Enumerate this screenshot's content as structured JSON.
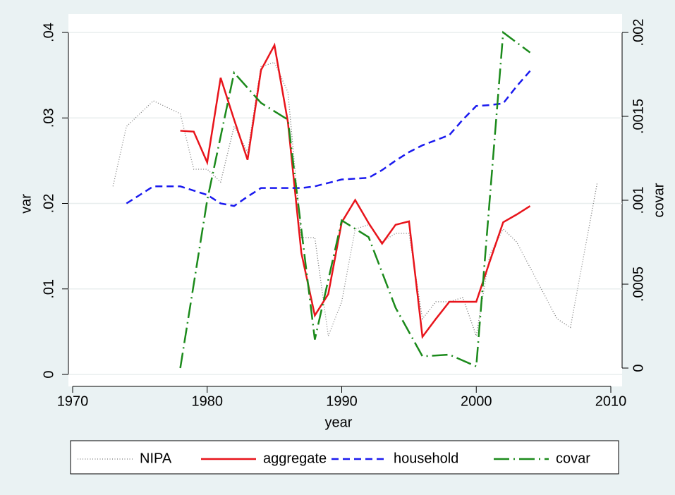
{
  "chart_data": {
    "type": "line",
    "x_label": "year",
    "y_label": "var",
    "y2_label": "covar",
    "xlim": [
      1970,
      2010
    ],
    "xticks": [
      1970,
      1980,
      1990,
      2000,
      2010
    ],
    "ylim": [
      0,
      0.04
    ],
    "yticks": [
      0,
      {
        "value": 0.01,
        "label": ".01"
      },
      {
        "value": 0.02,
        "label": ".02"
      },
      {
        "value": 0.03,
        "label": ".03"
      },
      {
        "value": 0.04,
        "label": ".04"
      }
    ],
    "y2lim": [
      0,
      0.002
    ],
    "y2ticks": [
      0,
      {
        "value": 0.0005,
        "label": ".0005"
      },
      {
        "value": 0.001,
        "label": ".001"
      },
      {
        "value": 0.0015,
        "label": ".0015"
      },
      {
        "value": 0.002,
        "label": ".002"
      }
    ],
    "grid": true,
    "legend": "bottom",
    "series": [
      {
        "name": "NIPA",
        "color": "#7a7a7a",
        "style": "dotted",
        "x": [
          1973,
          1974,
          1976,
          1978,
          1979,
          1980,
          1981,
          1982,
          1983,
          1984,
          1985,
          1986,
          1987,
          1988,
          1989,
          1990,
          1991,
          1992,
          1993,
          1994,
          1995,
          1996,
          1997,
          1998,
          1999,
          2000,
          2001,
          2002,
          2003,
          2004,
          2005,
          2006,
          2007,
          2008,
          2009
        ],
        "values": [
          0.022,
          0.029,
          0.032,
          0.0305,
          0.024,
          0.024,
          0.0225,
          0.029,
          0.026,
          0.036,
          0.0365,
          0.033,
          0.016,
          0.016,
          0.0045,
          0.0085,
          0.017,
          0.0175,
          0.0155,
          0.0165,
          0.0165,
          0.0065,
          0.0085,
          0.0085,
          0.009,
          0.0045,
          0.014,
          0.017,
          0.0155,
          0.0125,
          0.0095,
          0.0065,
          0.0055,
          0.014,
          0.0225
        ]
      },
      {
        "name": "aggregate",
        "color": "#e8141b",
        "style": "solid",
        "x": [
          1978,
          1979,
          1980,
          1981,
          1982,
          1983,
          1984,
          1985,
          1986,
          1987,
          1988,
          1989,
          1990,
          1991,
          1992,
          1993,
          1994,
          1995,
          1996,
          1997,
          1998,
          1999,
          2000,
          2001,
          2002,
          2003,
          2004
        ],
        "values": [
          0.0285,
          0.0284,
          0.0248,
          0.0347,
          0.0298,
          0.0251,
          0.0356,
          0.0385,
          0.0295,
          0.0142,
          0.0069,
          0.0094,
          0.0178,
          0.0204,
          0.0177,
          0.0153,
          0.0175,
          0.0179,
          0.0044,
          0.0065,
          0.0085,
          0.0085,
          0.0085,
          0.0132,
          0.0178,
          0.0187,
          0.0197
        ]
      },
      {
        "name": "household",
        "color": "#1a1aef",
        "style": "dashed",
        "x": [
          1974,
          1975,
          1976,
          1977,
          1978,
          1979,
          1980,
          1981,
          1982,
          1983,
          1984,
          1985,
          1986,
          1987,
          1988,
          1989,
          1990,
          1991,
          1992,
          1993,
          1994,
          1995,
          1996,
          1997,
          1998,
          1999,
          2000,
          2001,
          2002,
          2003,
          2004
        ],
        "values": [
          0.02,
          0.021,
          0.022,
          0.022,
          0.022,
          0.0215,
          0.021,
          0.02,
          0.0197,
          0.0208,
          0.0218,
          0.0218,
          0.0218,
          0.0218,
          0.022,
          0.0224,
          0.0228,
          0.0229,
          0.023,
          0.0239,
          0.025,
          0.026,
          0.0268,
          0.0274,
          0.028,
          0.0298,
          0.0314,
          0.0315,
          0.0317,
          0.0337,
          0.0355
        ]
      },
      {
        "name": "covar",
        "color": "#1b8a1b",
        "style": "dashdot",
        "axis": "y2",
        "x": [
          1978,
          1980,
          1982,
          1984,
          1986,
          1988,
          1990,
          1992,
          1994,
          1996,
          1998,
          2000,
          2002,
          2004
        ],
        "values": [
          0,
          0.001,
          0.00176,
          0.00158,
          0.00148,
          0.00017,
          0.00088,
          0.00078,
          0.00036,
          7e-05,
          8e-05,
          1e-05,
          0.002,
          0.00188
        ]
      }
    ]
  }
}
